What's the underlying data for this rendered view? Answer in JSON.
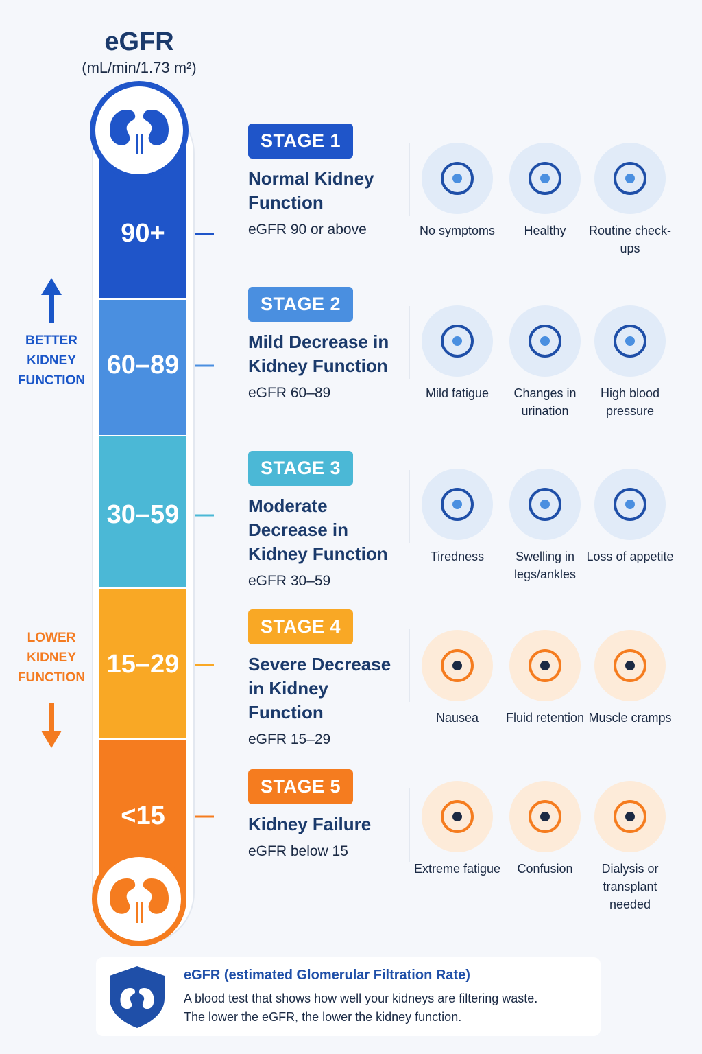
{
  "header": {
    "title": "eGFR",
    "unit": "(mL/min/1.73 m²)"
  },
  "side_labels": {
    "better": "BETTER KIDNEY FUNCTION",
    "better_color": "#1a56c8",
    "lower": "LOWER KIDNEY FUNCTION",
    "lower_color": "#f47b20"
  },
  "stages": [
    {
      "badge": "STAGE 1",
      "range": "90+",
      "title": "Normal Kidney Function",
      "detail": "eGFR 90 or above",
      "color": "#1f55c9",
      "icon_bg": "#e1ebf8",
      "symptoms": [
        "No symptoms",
        "Healthy",
        "Routine check-ups"
      ]
    },
    {
      "badge": "STAGE 2",
      "range": "60–89",
      "title": "Mild Decrease in Kidney Function",
      "detail": "eGFR 60–89",
      "color": "#4a8fe0",
      "icon_bg": "#e1ebf8",
      "symptoms": [
        "Mild fatigue",
        "Changes in urination",
        "High blood pressure"
      ]
    },
    {
      "badge": "STAGE 3",
      "range": "30–59",
      "title": "Moderate Decrease in Kidney Function",
      "detail": "eGFR 30–59",
      "color": "#4bb8d6",
      "icon_bg": "#e1ebf8",
      "symptoms": [
        "Tiredness",
        "Swelling in legs/ankles",
        "Loss of appetite"
      ]
    },
    {
      "badge": "STAGE 4",
      "range": "15–29",
      "title": "Severe Decrease in Kidney Function",
      "detail": "eGFR 15–29",
      "color": "#f9a825",
      "icon_bg": "#fdebd9",
      "symptoms": [
        "Nausea",
        "Fluid retention",
        "Muscle cramps"
      ]
    },
    {
      "badge": "STAGE 5",
      "range": "<15",
      "title": "Kidney Failure",
      "detail": "eGFR below 15",
      "color": "#f57c1f",
      "icon_bg": "#fdebd9",
      "symptoms": [
        "Extreme fatigue",
        "Confusion",
        "Dialysis or transplant needed"
      ]
    }
  ],
  "footer": {
    "title": "eGFR (estimated Glomerular Filtration Rate)",
    "lines": [
      "A blood test that shows how well your kidneys are filtering waste.",
      "The lower the eGFR, the lower the kidney function."
    ]
  }
}
